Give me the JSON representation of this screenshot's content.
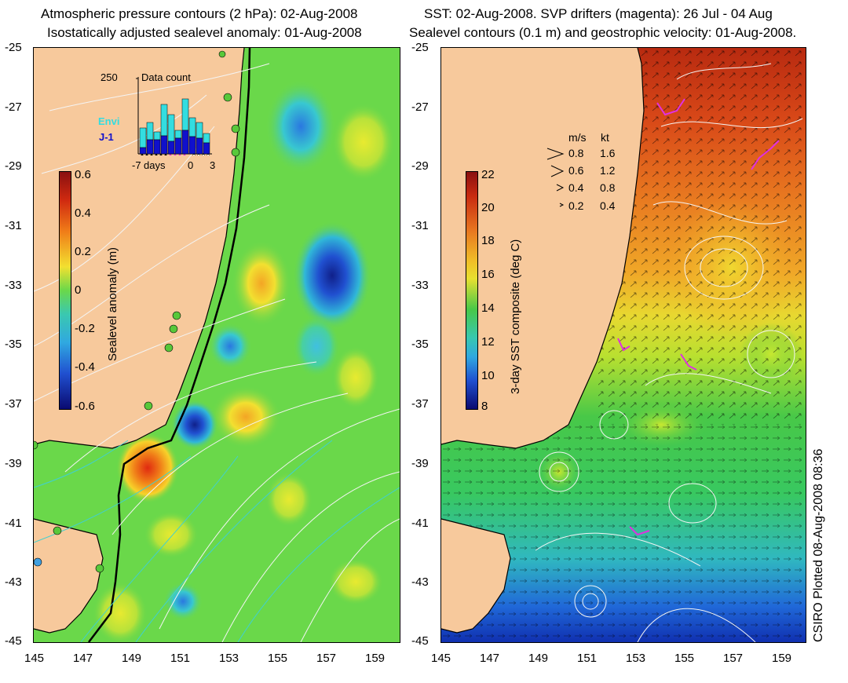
{
  "left": {
    "title1": "Atmospheric pressure contours (2 hPa): 02-Aug-2008",
    "title2": "Isostatically adjusted sealevel anomaly: 01-Aug-2008",
    "colorbar_label": "Sealevel anomaly (m)",
    "colorbar_ticks": [
      "0.6",
      "0.4",
      "0.2",
      "0",
      "-0.2",
      "-0.4",
      "-0.6"
    ],
    "inset": {
      "title": "Data count",
      "ymax_label": "250",
      "envi_label": "Envi",
      "j1_label": "J-1",
      "xticks": [
        "-7",
        "0",
        "3"
      ],
      "days_label": "days",
      "colors": {
        "envi": "#33dde0",
        "j1": "#1010cc"
      }
    }
  },
  "right": {
    "title1": "SST: 02-Aug-2008. SVP drifters (magenta): 26 Jul - 04 Aug",
    "title2": "Sealevel contours (0.1 m) and geostrophic velocity: 01-Aug-2008.",
    "colorbar_label": "3-day SST composite (deg C)",
    "colorbar_ticks": [
      "22",
      "20",
      "18",
      "16",
      "14",
      "12",
      "10",
      "8"
    ],
    "velocity_legend": {
      "header_ms": "m/s",
      "header_kt": "kt",
      "rows": [
        {
          "ms": "0.8",
          "kt": "1.6"
        },
        {
          "ms": "0.6",
          "kt": "1.2"
        },
        {
          "ms": "0.4",
          "kt": "0.8"
        },
        {
          "ms": "0.2",
          "kt": "0.4"
        }
      ]
    }
  },
  "axes": {
    "lat_ticks": [
      "-25",
      "-27",
      "-29",
      "-31",
      "-33",
      "-35",
      "-37",
      "-39",
      "-41",
      "-43",
      "-45"
    ],
    "lon_ticks": [
      "145",
      "147",
      "149",
      "151",
      "153",
      "155",
      "157",
      "159"
    ]
  },
  "credit": "CSIRO Plotted 08-Aug-2008 08:36",
  "colors": {
    "land": "#f7c99c",
    "ocean_left": "#6ad84a",
    "coast": "#000000",
    "drifter": "#e030e0"
  }
}
